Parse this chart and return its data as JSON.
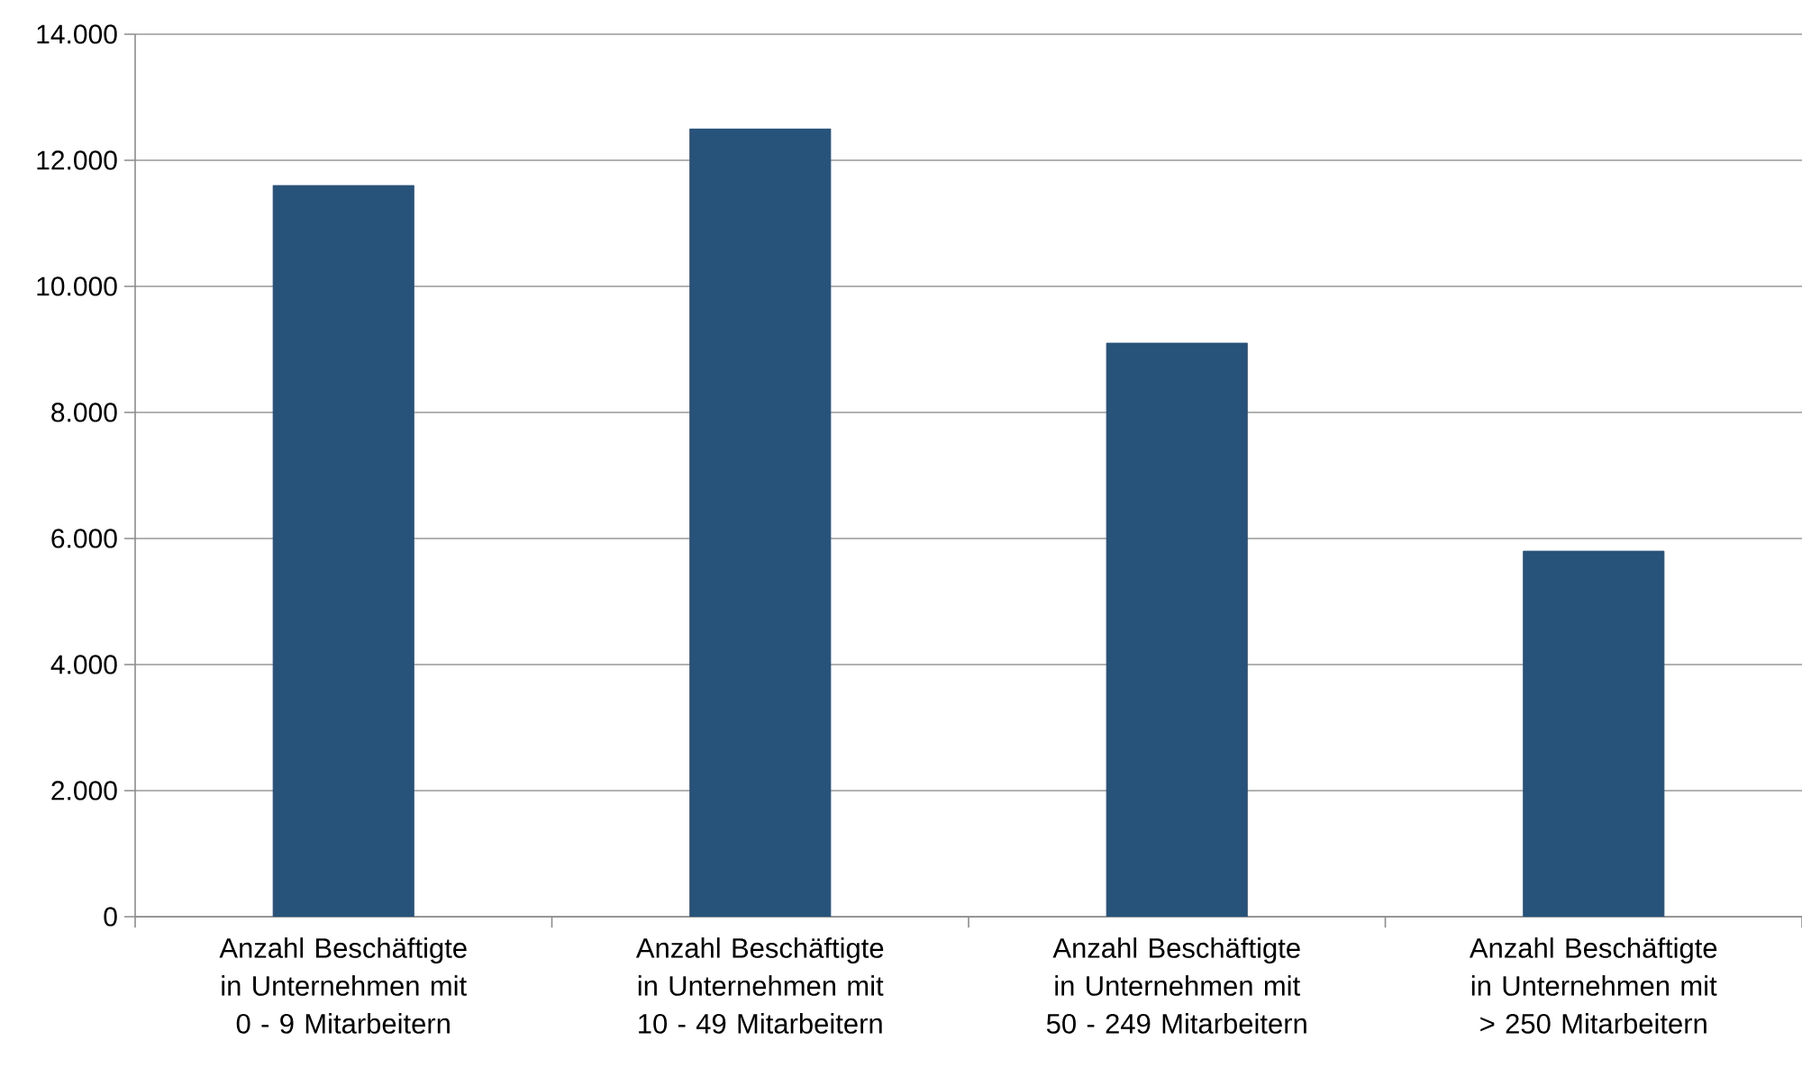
{
  "chart_data": {
    "type": "bar",
    "categories": [
      "Anzahl Beschäftigte in Unternehmen mit 0 - 9 Mitarbeitern",
      "Anzahl Beschäftigte in Unternehmen mit 10 - 49 Mitarbeitern",
      "Anzahl Beschäftigte in Unternehmen mit 50 - 249 Mitarbeitern",
      "Anzahl Beschäftigte in Unternehmen mit > 250 Mitarbeitern"
    ],
    "values": [
      11600,
      12500,
      9100,
      5800
    ],
    "color": "#27527a",
    "ylim": [
      0,
      14000
    ],
    "yticks": [
      0,
      {
        "value": 2000,
        "label": "2.000"
      },
      {
        "value": 4000,
        "label": "4.000"
      },
      {
        "value": 6000,
        "label": "6.000"
      },
      {
        "value": 8000,
        "label": "8.000"
      },
      {
        "value": 10000,
        "label": "10.000"
      },
      {
        "value": 12000,
        "label": "12.000"
      },
      {
        "value": 14000,
        "label": "14.000"
      }
    ],
    "grid": "y"
  }
}
